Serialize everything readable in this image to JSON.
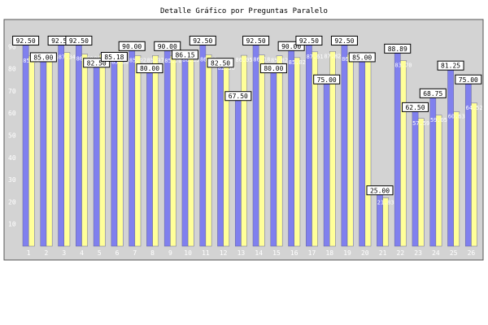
{
  "chart_data": {
    "type": "bar",
    "title": "Detalle Gráfico por Preguntas Paralelo",
    "xlabel": "",
    "ylabel": "",
    "ylim": [
      0,
      100
    ],
    "yticks": [
      10,
      20,
      30,
      40,
      50,
      60,
      70,
      80,
      90
    ],
    "grid": false,
    "legend": "none",
    "categories": [
      "1",
      "2",
      "3",
      "4",
      "5",
      "6",
      "7",
      "8",
      "9",
      "10",
      "11",
      "12",
      "13",
      "14",
      "15",
      "16",
      "17",
      "18",
      "19",
      "20",
      "21",
      "22",
      "23",
      "24",
      "25",
      "26"
    ],
    "series": [
      {
        "name": "Paralelo",
        "color": "#8080ee",
        "label_style": "boxed",
        "values": [
          92.5,
          85.0,
          92.5,
          92.5,
          82.5,
          85.18,
          90.0,
          80.0,
          90.0,
          86.15,
          92.5,
          82.5,
          67.5,
          92.5,
          80.0,
          90.0,
          92.5,
          75.0,
          92.5,
          85.0,
          25.0,
          88.89,
          62.5,
          68.75,
          81.25,
          75.0
        ],
        "labels": [
          "92.50",
          "85.00",
          "92.50",
          "92.50",
          "82.50",
          "85.18",
          "90.00",
          "80.00",
          "90.00",
          "86.15",
          "92.50",
          "82.50",
          "67.50",
          "92.50",
          "80.00",
          "90.00",
          "92.50",
          "75.00",
          "92.50",
          "85.00",
          "25.00",
          "88.89",
          "62.50",
          "68.75",
          "81.25",
          "75.00"
        ]
      },
      {
        "name": "General",
        "color": "#ffff99",
        "label_style": "plain",
        "values": [
          85.75,
          86.79,
          87.34,
          86.6,
          86.6,
          85.18,
          85.92,
          85.97,
          85.76,
          86.15,
          86.31,
          82.5,
          86.05,
          86.18,
          85.82,
          85.02,
          87.61,
          87.82,
          86.5,
          86.05,
          21.83,
          83.7,
          57.59,
          59.05,
          60.63,
          64.52
        ],
        "labels": [
          "85.75",
          "86.79",
          "87.34",
          "86.60",
          "86.60",
          "85.18",
          "85.92",
          "85.97",
          "85.76",
          "86.15",
          "86.31",
          "82.50",
          "86.05",
          "86.18",
          "85.82",
          "85.02",
          "87.61",
          "87.82",
          "86.50",
          "86.05",
          "21.83",
          "83.70",
          "57.59",
          "59.05",
          "60.63",
          "64.52"
        ]
      }
    ]
  }
}
